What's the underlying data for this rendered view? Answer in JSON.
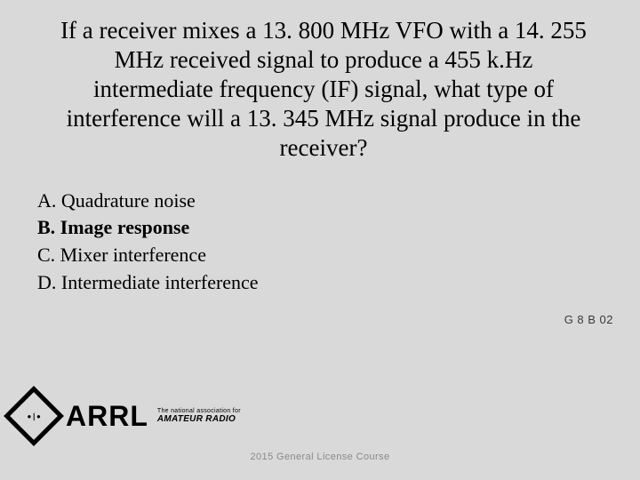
{
  "colors": {
    "background": "#d9d9d9",
    "text": "#000000",
    "footer_text": "#8a8a8a",
    "qid_text": "#3a3a3a"
  },
  "typography": {
    "question_font": "Times New Roman",
    "question_size_pt": 20,
    "answer_size_pt": 17,
    "footer_font": "Arial",
    "footer_size_pt": 8
  },
  "question": "If a receiver mixes a 13. 800 MHz VFO with a 14. 255 MHz received signal to produce a 455 k.Hz intermediate frequency (IF) signal, what type of interference will a 13. 345 MHz signal produce in the receiver?",
  "answers": [
    {
      "label": "A. Quadrature noise",
      "bold": false
    },
    {
      "label": "B. Image response",
      "bold": true
    },
    {
      "label": "C. Mixer interference",
      "bold": false
    },
    {
      "label": "D. Intermediate interference",
      "bold": false
    }
  ],
  "question_id": "G 8 B 02",
  "logo": {
    "diamond_text": "●❘●",
    "wordmark": "ARRL",
    "tagline_small": "The national association for",
    "tagline_bold": "AMATEUR RADIO"
  },
  "footer": "2015 General License Course"
}
